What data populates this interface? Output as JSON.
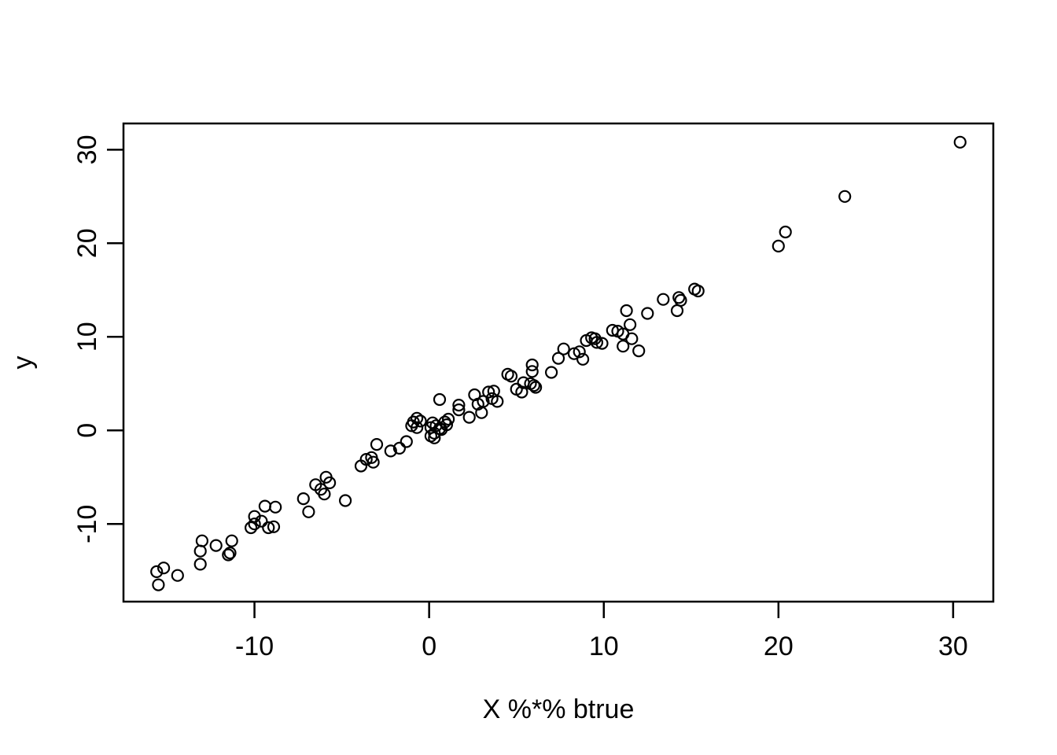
{
  "figure": {
    "background_color": "#ffffff",
    "foreground_color": "#000000"
  },
  "chart_data": {
    "type": "scatter",
    "title": "",
    "xlabel": "X %*% btrue",
    "ylabel": "y",
    "xlim": [
      -17.5,
      32.3
    ],
    "ylim": [
      -18.3,
      32.8
    ],
    "x_ticks": [
      -10,
      0,
      10,
      20,
      30
    ],
    "y_ticks": [
      -10,
      0,
      10,
      20,
      30
    ],
    "grid": false,
    "legend": "none",
    "marker": "open-circle",
    "marker_color": "#000000",
    "points": [
      [
        -15.6,
        -15.1
      ],
      [
        -15.2,
        -14.7
      ],
      [
        -15.5,
        -16.5
      ],
      [
        -14.4,
        -15.5
      ],
      [
        -13.0,
        -11.8
      ],
      [
        -13.1,
        -12.9
      ],
      [
        -13.1,
        -14.3
      ],
      [
        -12.2,
        -12.3
      ],
      [
        -11.3,
        -11.8
      ],
      [
        -11.4,
        -13.1
      ],
      [
        -11.5,
        -13.3
      ],
      [
        -10.2,
        -10.4
      ],
      [
        -10.0,
        -9.2
      ],
      [
        -10.0,
        -10.0
      ],
      [
        -9.6,
        -9.7
      ],
      [
        -9.2,
        -10.4
      ],
      [
        -8.9,
        -10.3
      ],
      [
        -9.4,
        -8.1
      ],
      [
        -8.8,
        -8.2
      ],
      [
        -7.2,
        -7.3
      ],
      [
        -6.9,
        -8.7
      ],
      [
        -6.5,
        -5.8
      ],
      [
        -6.2,
        -6.3
      ],
      [
        -6.0,
        -6.8
      ],
      [
        -5.9,
        -5.0
      ],
      [
        -5.7,
        -5.6
      ],
      [
        -4.8,
        -7.5
      ],
      [
        -3.9,
        -3.8
      ],
      [
        -3.6,
        -3.1
      ],
      [
        -3.3,
        -2.9
      ],
      [
        -3.2,
        -3.4
      ],
      [
        -3.0,
        -1.5
      ],
      [
        -2.2,
        -2.2
      ],
      [
        -1.7,
        -1.9
      ],
      [
        -1.3,
        -1.2
      ],
      [
        -1.0,
        0.5
      ],
      [
        -0.9,
        0.9
      ],
      [
        -0.7,
        1.3
      ],
      [
        -0.5,
        1.0
      ],
      [
        -0.7,
        0.3
      ],
      [
        0.1,
        0.3
      ],
      [
        0.2,
        0.8
      ],
      [
        0.4,
        0.5
      ],
      [
        0.9,
        0.9
      ],
      [
        1.0,
        0.6
      ],
      [
        1.1,
        1.2
      ],
      [
        0.6,
        0.2
      ],
      [
        0.7,
        0.1
      ],
      [
        0.3,
        -0.3
      ],
      [
        0.1,
        -0.6
      ],
      [
        0.3,
        -0.8
      ],
      [
        0.6,
        3.3
      ],
      [
        1.7,
        2.7
      ],
      [
        1.7,
        2.2
      ],
      [
        2.3,
        1.4
      ],
      [
        2.6,
        3.8
      ],
      [
        2.8,
        2.8
      ],
      [
        3.1,
        3.1
      ],
      [
        3.0,
        1.9
      ],
      [
        3.4,
        4.1
      ],
      [
        3.7,
        4.2
      ],
      [
        3.6,
        3.4
      ],
      [
        3.9,
        3.1
      ],
      [
        4.5,
        6.0
      ],
      [
        4.7,
        5.8
      ],
      [
        5.0,
        4.4
      ],
      [
        5.3,
        4.1
      ],
      [
        5.4,
        5.1
      ],
      [
        5.9,
        7.0
      ],
      [
        5.9,
        6.3
      ],
      [
        5.8,
        5.0
      ],
      [
        6.0,
        4.8
      ],
      [
        6.1,
        4.6
      ],
      [
        7.0,
        6.2
      ],
      [
        7.4,
        7.7
      ],
      [
        7.7,
        8.7
      ],
      [
        8.3,
        8.2
      ],
      [
        8.6,
        8.4
      ],
      [
        8.8,
        7.6
      ],
      [
        9.0,
        9.6
      ],
      [
        9.3,
        9.9
      ],
      [
        9.5,
        9.8
      ],
      [
        9.6,
        9.4
      ],
      [
        9.9,
        9.3
      ],
      [
        10.5,
        10.7
      ],
      [
        10.8,
        10.6
      ],
      [
        11.1,
        10.3
      ],
      [
        11.1,
        9.0
      ],
      [
        11.3,
        12.8
      ],
      [
        11.5,
        11.3
      ],
      [
        11.6,
        9.8
      ],
      [
        12.0,
        8.5
      ],
      [
        12.5,
        12.5
      ],
      [
        13.4,
        14.0
      ],
      [
        14.2,
        12.8
      ],
      [
        14.3,
        14.2
      ],
      [
        14.4,
        13.9
      ],
      [
        15.2,
        15.1
      ],
      [
        15.4,
        14.9
      ],
      [
        20.0,
        19.7
      ],
      [
        20.4,
        21.2
      ],
      [
        23.8,
        25.0
      ],
      [
        30.4,
        30.8
      ]
    ]
  }
}
